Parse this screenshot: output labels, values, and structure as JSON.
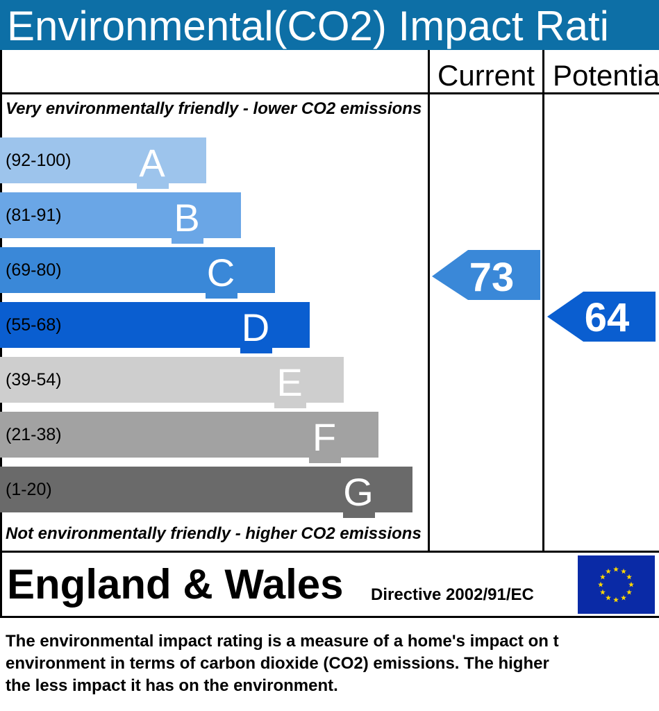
{
  "header": {
    "title": "Environmental(CO2) Impact Rati"
  },
  "columns": {
    "current": "Current",
    "potential": "Potentia"
  },
  "notes": {
    "top": "Very environmentally friendly - lower CO2 emissions",
    "bottom": "Not environmentally friendly - higher CO2 emissions"
  },
  "chart_data": {
    "type": "bar",
    "bands": [
      {
        "letter": "A",
        "range": "(92-100)",
        "color": "#9dc4ec"
      },
      {
        "letter": "B",
        "range": "(81-91)",
        "color": "#6aa6e6"
      },
      {
        "letter": "C",
        "range": "(69-80)",
        "color": "#3a88d8"
      },
      {
        "letter": "D",
        "range": "(55-68)",
        "color": "#0a5ed0"
      },
      {
        "letter": "E",
        "range": "(39-54)",
        "color": "#cecece"
      },
      {
        "letter": "F",
        "range": "(21-38)",
        "color": "#a2a2a2"
      },
      {
        "letter": "G",
        "range": "(1-20)",
        "color": "#6a6a6a"
      }
    ],
    "current": {
      "value": 73,
      "band": "C",
      "color": "#3a88d8"
    },
    "potential": {
      "value": 64,
      "band": "D",
      "color": "#0a5ed0"
    }
  },
  "footer": {
    "region": "England & Wales",
    "directive": "Directive 2002/91/EC",
    "flag_colors": {
      "field": "#0a2aa6",
      "stars": "#ffd800"
    }
  },
  "description": "The environmental impact rating is a measure of a home's impact on t\nenvironment in terms of carbon dioxide (CO2) emissions. The higher\nthe less impact it has on the environment."
}
